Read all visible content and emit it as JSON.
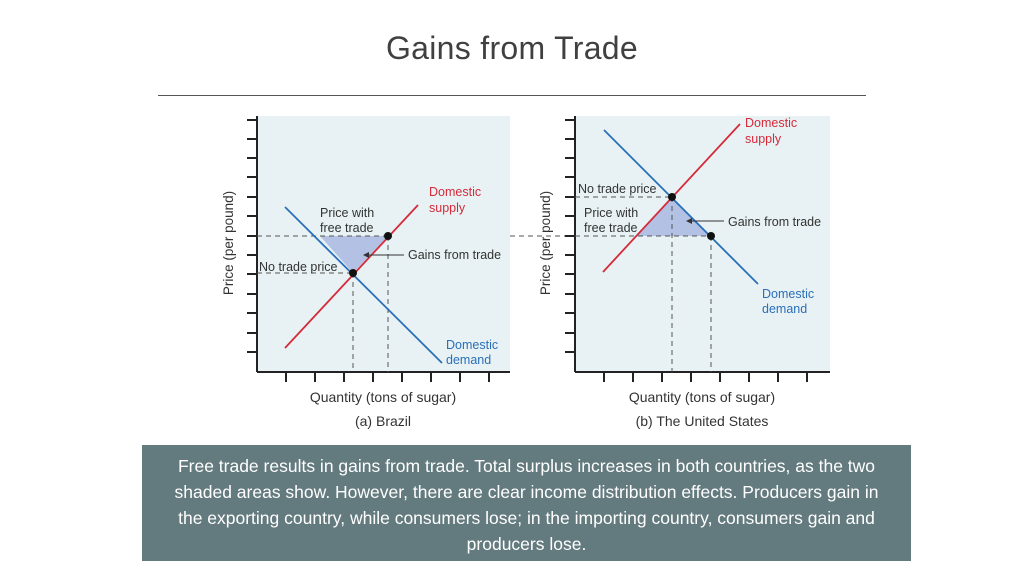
{
  "title": "Gains from Trade",
  "panels": [
    {
      "subtitle": "(a) Brazil",
      "xlabel": "Quantity (tons of sugar)",
      "ylabel": "Price (per pound)",
      "supply_label": [
        "Domestic",
        "supply"
      ],
      "demand_label": [
        "Domestic",
        "demand"
      ],
      "free_trade_label": [
        "Price with",
        "free trade"
      ],
      "no_trade_label": "No trade price",
      "gains_label": "Gains from trade"
    },
    {
      "subtitle": "(b) The United States",
      "xlabel": "Quantity (tons of sugar)",
      "ylabel": "Price (per pound)",
      "supply_label": [
        "Domestic",
        "supply"
      ],
      "demand_label": [
        "Domestic",
        "demand"
      ],
      "free_trade_label": [
        "Price with",
        "free trade"
      ],
      "no_trade_label": "No trade price",
      "gains_label": "Gains from trade"
    }
  ],
  "caption": "Free trade results in gains from trade. Total surplus increases in both countries, as the two shaded areas show. However, there are clear income distribution effects. Producers gain in the exporting country, while consumers lose; in the importing country, consumers gain and producers lose.",
  "colors": {
    "supply": "#d42a3a",
    "demand": "#2a6fb8",
    "shade": "#a9b9e0",
    "panel_bg": "#e8f2f4"
  }
}
